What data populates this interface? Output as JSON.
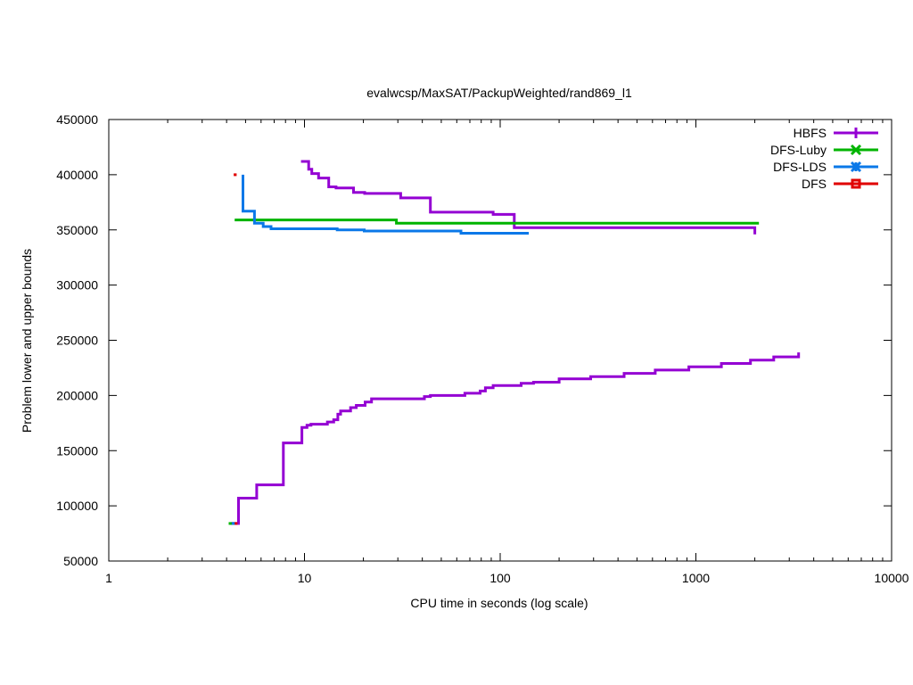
{
  "chart_data": {
    "type": "line",
    "title": "evalwcsp/MaxSAT/PackupWeighted/rand869_l1",
    "xlabel": "CPU time in seconds (log scale)",
    "ylabel": "Problem lower and upper bounds",
    "x_scale": "log",
    "xlim": [
      1,
      10000
    ],
    "ylim": [
      50000,
      450000
    ],
    "x_ticks": [
      1,
      10,
      100,
      1000,
      10000
    ],
    "x_tick_labels": [
      "1",
      "10",
      "100",
      "1000",
      "10000"
    ],
    "y_ticks": [
      50000,
      100000,
      150000,
      200000,
      250000,
      300000,
      350000,
      400000,
      450000
    ],
    "y_tick_labels": [
      "50000",
      "100000",
      "150000",
      "200000",
      "250000",
      "300000",
      "350000",
      "400000",
      "450000"
    ],
    "legend_position": "top-right",
    "grid": false,
    "series": [
      {
        "name": "HBFS",
        "color": "#9400d3",
        "marker": "plus",
        "lines": [
          {
            "kind": "upper",
            "points": [
              [
                9.6,
                412000
              ],
              [
                10.5,
                412000
              ],
              [
                10.5,
                405000
              ],
              [
                10.9,
                405000
              ],
              [
                10.9,
                401000
              ],
              [
                11.8,
                401000
              ],
              [
                11.8,
                397000
              ],
              [
                13.3,
                397000
              ],
              [
                13.3,
                389000
              ],
              [
                14.5,
                389000
              ],
              [
                14.5,
                388000
              ],
              [
                17.8,
                388000
              ],
              [
                17.8,
                384000
              ],
              [
                20.3,
                384000
              ],
              [
                20.3,
                383000
              ],
              [
                31,
                383000
              ],
              [
                31,
                379000
              ],
              [
                44,
                379000
              ],
              [
                44,
                366000
              ],
              [
                92,
                366000
              ],
              [
                92,
                364000
              ],
              [
                118,
                364000
              ],
              [
                118,
                352000
              ],
              [
                2000,
                352000
              ],
              [
                2000,
                346000
              ]
            ]
          },
          {
            "kind": "lower",
            "points": [
              [
                4.2,
                84000
              ],
              [
                4.6,
                84000
              ],
              [
                4.6,
                107000
              ],
              [
                5.7,
                107000
              ],
              [
                5.7,
                119000
              ],
              [
                7.8,
                119000
              ],
              [
                7.8,
                157000
              ],
              [
                9.7,
                157000
              ],
              [
                9.7,
                171000
              ],
              [
                10.3,
                171000
              ],
              [
                10.3,
                173000
              ],
              [
                10.8,
                173000
              ],
              [
                10.8,
                174000
              ],
              [
                13.1,
                174000
              ],
              [
                13.1,
                176000
              ],
              [
                14.1,
                176000
              ],
              [
                14.1,
                178000
              ],
              [
                14.8,
                178000
              ],
              [
                14.8,
                183000
              ],
              [
                15.3,
                183000
              ],
              [
                15.3,
                186000
              ],
              [
                17.2,
                186000
              ],
              [
                17.2,
                189000
              ],
              [
                18.4,
                189000
              ],
              [
                18.4,
                191000
              ],
              [
                20.4,
                191000
              ],
              [
                20.4,
                194000
              ],
              [
                22,
                194000
              ],
              [
                22,
                197000
              ],
              [
                41,
                197000
              ],
              [
                41,
                199000
              ],
              [
                44,
                199000
              ],
              [
                44,
                200000
              ],
              [
                66,
                200000
              ],
              [
                66,
                202000
              ],
              [
                79,
                202000
              ],
              [
                79,
                204000
              ],
              [
                84,
                204000
              ],
              [
                84,
                207000
              ],
              [
                92,
                207000
              ],
              [
                92,
                209000
              ],
              [
                128,
                209000
              ],
              [
                128,
                211000
              ],
              [
                148,
                211000
              ],
              [
                148,
                212000
              ],
              [
                200,
                212000
              ],
              [
                200,
                215000
              ],
              [
                290,
                215000
              ],
              [
                290,
                217000
              ],
              [
                430,
                217000
              ],
              [
                430,
                220000
              ],
              [
                620,
                220000
              ],
              [
                620,
                223000
              ],
              [
                920,
                223000
              ],
              [
                920,
                226000
              ],
              [
                1350,
                226000
              ],
              [
                1350,
                229000
              ],
              [
                1900,
                229000
              ],
              [
                1900,
                232000
              ],
              [
                2500,
                232000
              ],
              [
                2500,
                235000
              ],
              [
                3350,
                235000
              ],
              [
                3350,
                239000
              ]
            ]
          }
        ]
      },
      {
        "name": "DFS-Luby",
        "color": "#00b400",
        "marker": "cross",
        "lines": [
          {
            "kind": "upper",
            "points": [
              [
                4.4,
                359000
              ],
              [
                29.5,
                359000
              ],
              [
                29.5,
                356000
              ],
              [
                2100,
                356000
              ]
            ]
          },
          {
            "kind": "lower",
            "points": [
              [
                4.1,
                84000
              ],
              [
                4.4,
                84000
              ]
            ]
          }
        ]
      },
      {
        "name": "DFS-LDS",
        "color": "#0a78e8",
        "marker": "star",
        "lines": [
          {
            "kind": "upper",
            "points": [
              [
                4.85,
                400000
              ],
              [
                4.85,
                367000
              ],
              [
                5.55,
                367000
              ],
              [
                5.55,
                356000
              ],
              [
                6.15,
                356000
              ],
              [
                6.15,
                353000
              ],
              [
                6.75,
                353000
              ],
              [
                6.75,
                351000
              ],
              [
                14.7,
                351000
              ],
              [
                14.7,
                350000
              ],
              [
                20.2,
                350000
              ],
              [
                20.2,
                349000
              ],
              [
                63,
                349000
              ],
              [
                63,
                347000
              ],
              [
                140,
                347000
              ]
            ]
          },
          {
            "kind": "lower",
            "points": [
              [
                4.25,
                84000
              ],
              [
                4.45,
                84000
              ]
            ]
          }
        ]
      },
      {
        "name": "DFS",
        "color": "#e00000",
        "marker": "square",
        "lines": [
          {
            "kind": "upper",
            "points": [
              [
                4.35,
                400000
              ],
              [
                4.5,
                400000
              ]
            ]
          },
          {
            "kind": "lower",
            "points": [
              [
                4.4,
                84000
              ],
              [
                4.55,
                84000
              ]
            ]
          }
        ]
      }
    ]
  }
}
